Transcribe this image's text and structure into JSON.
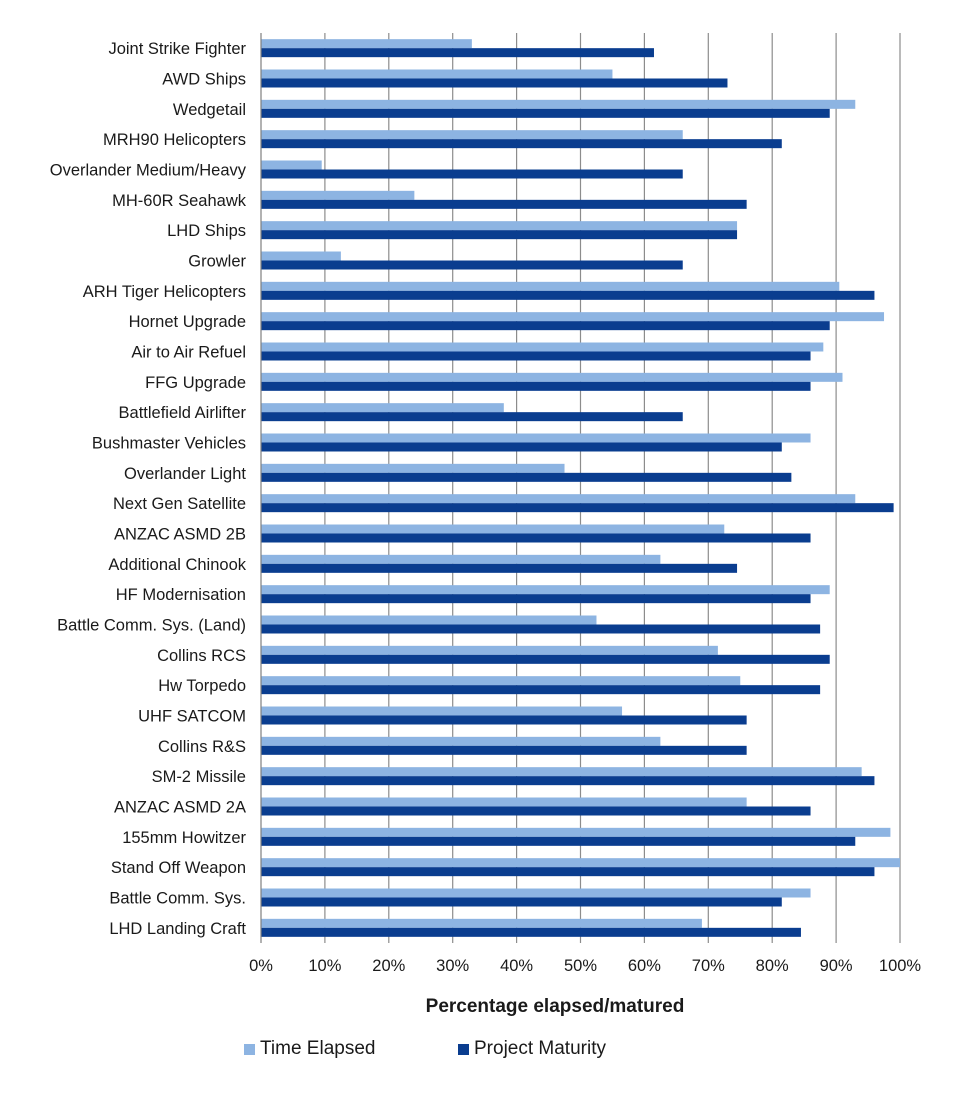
{
  "chart_data": {
    "type": "bar",
    "orientation": "horizontal",
    "categories": [
      "Joint Strike Fighter",
      "AWD Ships",
      "Wedgetail",
      "MRH90 Helicopters",
      "Overlander Medium/Heavy",
      "MH-60R Seahawk",
      "LHD Ships",
      "Growler",
      "ARH Tiger Helicopters",
      "Hornet Upgrade",
      "Air to Air Refuel",
      "FFG Upgrade",
      "Battlefield Airlifter",
      "Bushmaster Vehicles",
      "Overlander Light",
      "Next Gen Satellite",
      "ANZAC ASMD 2B",
      "Additional Chinook",
      "HF Modernisation",
      "Battle Comm. Sys. (Land)",
      "Collins RCS",
      "Hw Torpedo",
      "UHF SATCOM",
      "Collins R&S",
      "SM-2 Missile",
      "ANZAC ASMD 2A",
      "155mm Howitzer",
      "Stand Off  Weapon",
      "Battle Comm. Sys.",
      "LHD Landing Craft"
    ],
    "series": [
      {
        "name": "Time Elapsed",
        "color": "#8db4e2",
        "values": [
          33,
          55,
          93,
          66,
          9.5,
          24,
          74.5,
          12.5,
          90.5,
          97.5,
          88,
          91,
          38,
          86,
          47.5,
          93,
          72.5,
          62.5,
          89,
          52.5,
          71.5,
          75,
          56.5,
          62.5,
          94,
          76,
          98.5,
          100,
          86,
          69
        ]
      },
      {
        "name": "Project Maturity",
        "color": "#0a3d8f",
        "values": [
          61.5,
          73,
          89,
          81.5,
          66,
          76,
          74.5,
          66,
          96,
          89,
          86,
          86,
          66,
          81.5,
          83,
          99,
          86,
          74.5,
          86,
          87.5,
          89,
          87.5,
          76,
          76,
          96,
          86,
          93,
          96,
          81.5,
          84.5
        ]
      }
    ],
    "xlim": [
      0,
      100
    ],
    "xticks": [
      "0%",
      "10%",
      "20%",
      "30%",
      "40%",
      "50%",
      "60%",
      "70%",
      "80%",
      "90%",
      "100%"
    ],
    "xlabel": "Percentage elapsed/matured",
    "ylabel": "",
    "title": "",
    "grid": "vertical",
    "legend": "bottom"
  },
  "legend": {
    "items": [
      {
        "label": "Time Elapsed",
        "color": "#8db4e2"
      },
      {
        "label": "Project Maturity",
        "color": "#0a3d8f"
      }
    ]
  }
}
